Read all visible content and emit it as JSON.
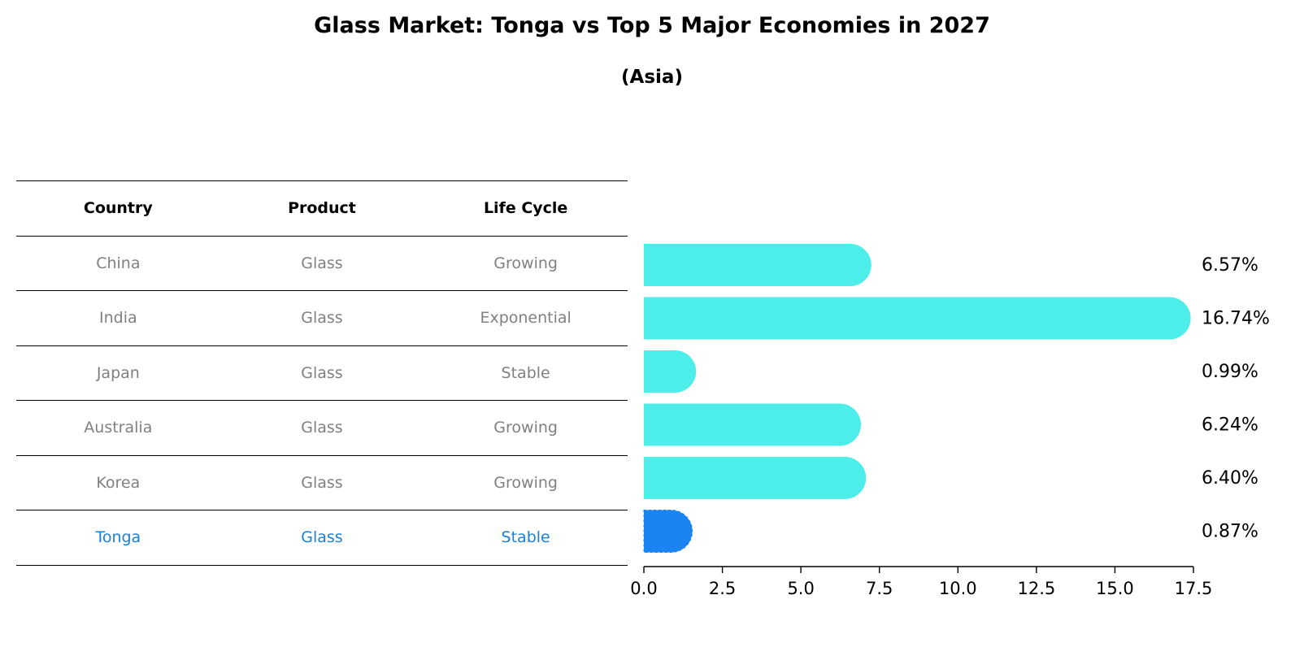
{
  "title": "Glass Market: Tonga vs Top 5 Major Economies in 2027",
  "subtitle": "(Asia)",
  "table": {
    "headers": [
      "Country",
      "Product",
      "Life Cycle"
    ],
    "rows": [
      {
        "country": "China",
        "product": "Glass",
        "life_cycle": "Growing"
      },
      {
        "country": "India",
        "product": "Glass",
        "life_cycle": "Exponential"
      },
      {
        "country": "Japan",
        "product": "Glass",
        "life_cycle": "Stable"
      },
      {
        "country": "Australia",
        "product": "Glass",
        "life_cycle": "Growing"
      },
      {
        "country": "Korea",
        "product": "Glass",
        "life_cycle": "Growing"
      },
      {
        "country": "Tonga",
        "product": "Glass",
        "life_cycle": "Stable"
      }
    ]
  },
  "colors": {
    "bar": "#4deeea",
    "highlight": "#1a84f0",
    "text_muted": "#808080",
    "text_highlight": "#1a80d8"
  },
  "chart_data": {
    "type": "bar",
    "orientation": "horizontal",
    "categories": [
      "China",
      "India",
      "Japan",
      "Australia",
      "Korea",
      "Tonga"
    ],
    "values": [
      6.57,
      16.74,
      0.99,
      6.24,
      6.4,
      0.87
    ],
    "value_labels": [
      "6.57%",
      "16.74%",
      "0.99%",
      "6.24%",
      "6.40%",
      "0.87%"
    ],
    "highlight": "Tonga",
    "xlim": [
      0,
      17.5
    ],
    "xticks": [
      0.0,
      2.5,
      5.0,
      7.5,
      10.0,
      12.5,
      15.0,
      17.5
    ],
    "xtick_labels": [
      "0.0",
      "2.5",
      "5.0",
      "7.5",
      "10.0",
      "12.5",
      "15.0",
      "17.5"
    ],
    "xlabel": "",
    "ylabel": ""
  }
}
